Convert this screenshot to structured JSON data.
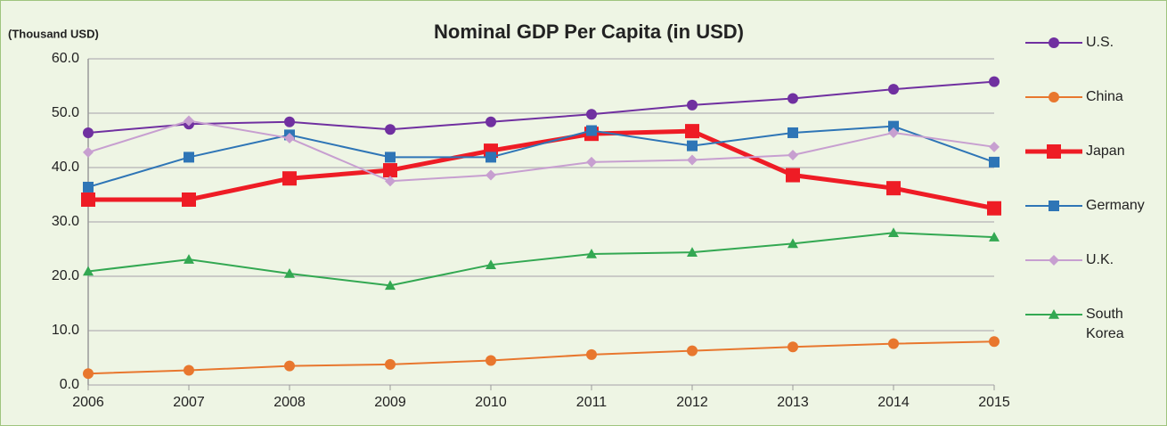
{
  "chart_data": {
    "type": "line",
    "title": "Nominal GDP Per Capita (in USD)",
    "y_axis_label": "(Thousand USD)",
    "categories": [
      "2006",
      "2007",
      "2008",
      "2009",
      "2010",
      "2011",
      "2012",
      "2013",
      "2014",
      "2015"
    ],
    "series": [
      {
        "name": "U.S.",
        "color": "#7030a0",
        "marker": "circle",
        "values": [
          46.4,
          48.0,
          48.4,
          47.0,
          48.4,
          49.8,
          51.5,
          52.7,
          54.4,
          55.8
        ]
      },
      {
        "name": "China",
        "color": "#e8772e",
        "marker": "circle",
        "values": [
          2.1,
          2.7,
          3.5,
          3.8,
          4.5,
          5.6,
          6.3,
          7.0,
          7.6,
          8.0
        ]
      },
      {
        "name": "Japan",
        "color": "#ee1c25",
        "marker": "square",
        "values": [
          34.1,
          34.1,
          38.0,
          39.5,
          43.1,
          46.2,
          46.7,
          38.6,
          36.2,
          32.5
        ]
      },
      {
        "name": "Germany",
        "color": "#2e75b6",
        "marker": "square",
        "values": [
          36.4,
          41.9,
          46.0,
          41.9,
          41.9,
          46.8,
          44.0,
          46.4,
          47.6,
          41.0
        ]
      },
      {
        "name": "U.K.",
        "color": "#c79fd0",
        "marker": "diamond",
        "values": [
          42.8,
          48.6,
          45.4,
          37.5,
          38.6,
          41.0,
          41.4,
          42.3,
          46.4,
          43.8
        ]
      },
      {
        "name": "South Korea",
        "color": "#33a852",
        "marker": "triangle",
        "values": [
          20.9,
          23.1,
          20.5,
          18.3,
          22.1,
          24.1,
          24.4,
          26.0,
          28.0,
          27.2
        ]
      }
    ],
    "ylim": [
      0,
      60
    ],
    "yticks": [
      {
        "value": 0,
        "label": "0.0"
      },
      {
        "value": 10,
        "label": "10.0"
      },
      {
        "value": 20,
        "label": "20.0"
      },
      {
        "value": 30,
        "label": "30.0"
      },
      {
        "value": 40,
        "label": "40.0"
      },
      {
        "value": 50,
        "label": "50.0"
      },
      {
        "value": 60,
        "label": "60.0"
      }
    ],
    "grid": true,
    "legend": "right"
  }
}
